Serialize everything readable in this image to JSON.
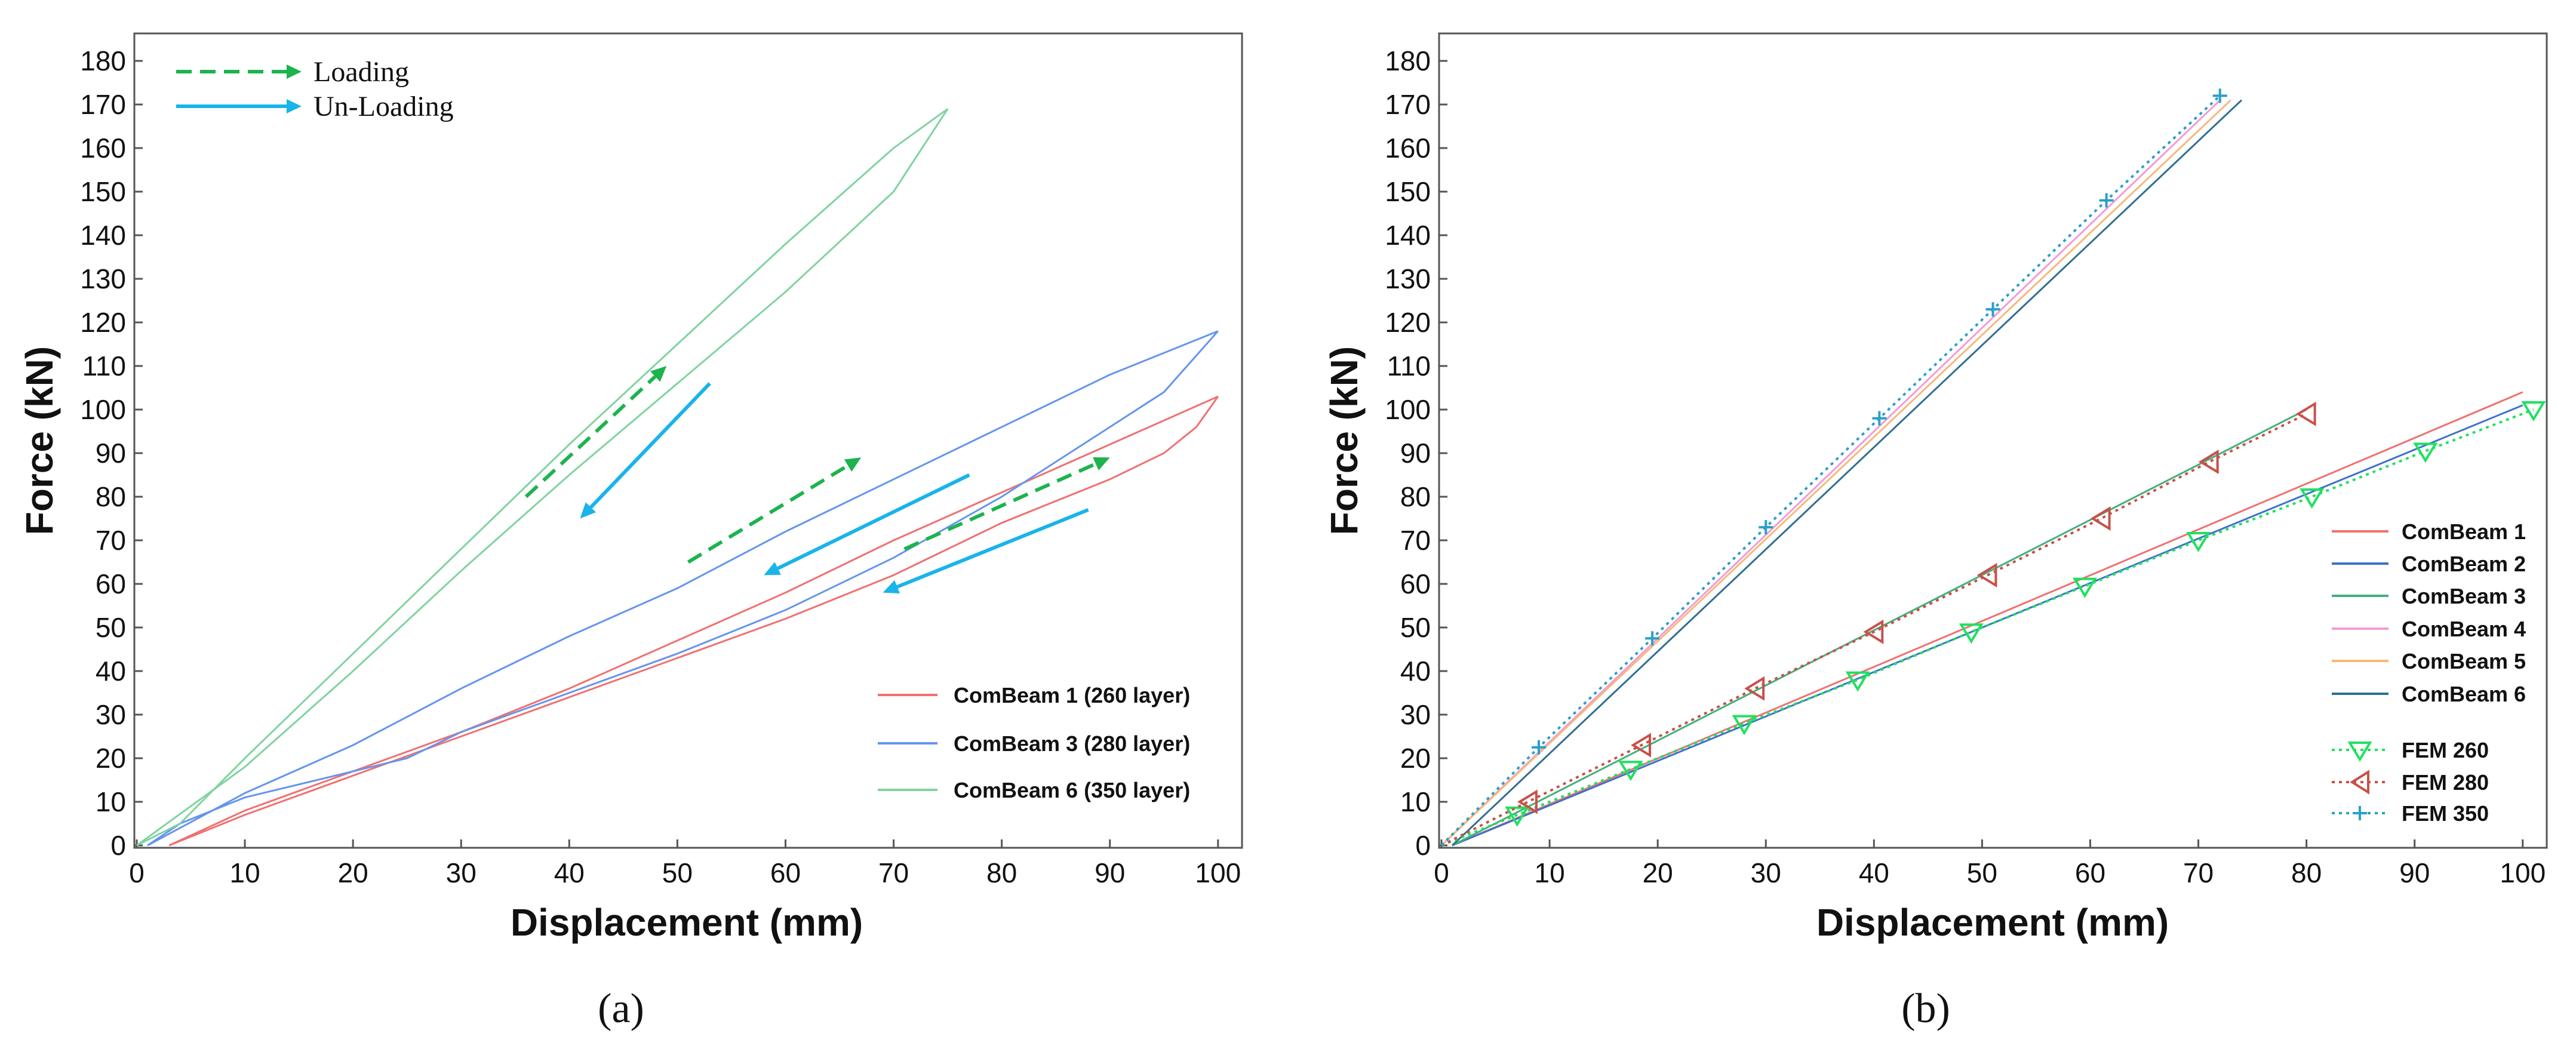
{
  "captions": {
    "a": "(a)",
    "b": "(b)"
  },
  "chart_data": [
    {
      "id": "a",
      "type": "line",
      "title": "",
      "xlabel": "Displacement (mm)",
      "ylabel": "Force (kN)",
      "xlim": [
        0,
        102
      ],
      "ylim": [
        0,
        180
      ],
      "xticks": [
        0,
        10,
        20,
        30,
        40,
        50,
        60,
        70,
        80,
        90,
        100
      ],
      "yticks": [
        0,
        10,
        20,
        30,
        40,
        50,
        60,
        70,
        80,
        90,
        100,
        110,
        120,
        130,
        140,
        150,
        160,
        170,
        180
      ],
      "annotation_legend": [
        {
          "label": "Loading",
          "style": "dashed-arrow",
          "color": "#1db34e"
        },
        {
          "label": "Un-Loading",
          "style": "solid-arrow",
          "color": "#18b4ea"
        }
      ],
      "series": [
        {
          "name": "ComBeam 1 (260 layer)",
          "color": "#f07070",
          "loading": [
            [
              3,
              0
            ],
            [
              10,
              8
            ],
            [
              20,
              17
            ],
            [
              30,
              26
            ],
            [
              40,
              36
            ],
            [
              50,
              47
            ],
            [
              60,
              58
            ],
            [
              70,
              70
            ],
            [
              80,
              81
            ],
            [
              90,
              92
            ],
            [
              100,
              103
            ]
          ],
          "unloading": [
            [
              100,
              103
            ],
            [
              98,
              96
            ],
            [
              95,
              90
            ],
            [
              90,
              84
            ],
            [
              80,
              74
            ],
            [
              70,
              62
            ],
            [
              60,
              52
            ],
            [
              50,
              43
            ],
            [
              40,
              34
            ],
            [
              30,
              25
            ],
            [
              20,
              16
            ],
            [
              10,
              7
            ],
            [
              3,
              0
            ]
          ]
        },
        {
          "name": "ComBeam 3 (280 layer)",
          "color": "#6495ed",
          "loading": [
            [
              1,
              0
            ],
            [
              10,
              12
            ],
            [
              20,
              23
            ],
            [
              30,
              36
            ],
            [
              40,
              48
            ],
            [
              50,
              59
            ],
            [
              60,
              72
            ],
            [
              70,
              84
            ],
            [
              80,
              96
            ],
            [
              90,
              108
            ],
            [
              95,
              113
            ],
            [
              100,
              118
            ]
          ],
          "unloading": [
            [
              100,
              118
            ],
            [
              95,
              104
            ],
            [
              90,
              96
            ],
            [
              80,
              80
            ],
            [
              70,
              66
            ],
            [
              60,
              54
            ],
            [
              50,
              44
            ],
            [
              40,
              35
            ],
            [
              30,
              26
            ],
            [
              25,
              20
            ],
            [
              20,
              17
            ],
            [
              10,
              11
            ],
            [
              4,
              5
            ],
            [
              1,
              0
            ]
          ]
        },
        {
          "name": "ComBeam 6 (350 layer)",
          "color": "#7fd3a0",
          "loading": [
            [
              0,
              0
            ],
            [
              10,
              18
            ],
            [
              20,
              40
            ],
            [
              30,
              63
            ],
            [
              40,
              85
            ],
            [
              50,
              106
            ],
            [
              60,
              127
            ],
            [
              70,
              150
            ],
            [
              75,
              169
            ]
          ],
          "unloading": [
            [
              75,
              169
            ],
            [
              70,
              160
            ],
            [
              60,
              138
            ],
            [
              50,
              115
            ],
            [
              40,
              92
            ],
            [
              30,
              68
            ],
            [
              20,
              44
            ],
            [
              10,
              20
            ],
            [
              4,
              5
            ],
            [
              0,
              0
            ]
          ]
        }
      ],
      "arrows": [
        {
          "type": "loading",
          "from": [
            36,
            80
          ],
          "to": [
            49,
            110
          ]
        },
        {
          "type": "unloading",
          "from": [
            53,
            106
          ],
          "to": [
            41,
            75
          ]
        },
        {
          "type": "loading",
          "from": [
            51,
            65
          ],
          "to": [
            67,
            89
          ]
        },
        {
          "type": "unloading",
          "from": [
            77,
            85
          ],
          "to": [
            58,
            62
          ]
        },
        {
          "type": "loading",
          "from": [
            71,
            68
          ],
          "to": [
            90,
            89
          ]
        },
        {
          "type": "unloading",
          "from": [
            88,
            77
          ],
          "to": [
            69,
            58
          ]
        }
      ]
    },
    {
      "id": "b",
      "type": "line",
      "title": "",
      "xlabel": "Displacement (mm)",
      "ylabel": "Force (kN)",
      "xlim": [
        0,
        102
      ],
      "ylim": [
        0,
        180
      ],
      "xticks": [
        0,
        10,
        20,
        30,
        40,
        50,
        60,
        70,
        80,
        90,
        100
      ],
      "yticks": [
        0,
        10,
        20,
        30,
        40,
        50,
        60,
        70,
        80,
        90,
        100,
        110,
        120,
        130,
        140,
        150,
        160,
        170,
        180
      ],
      "series": [
        {
          "name": "ComBeam 1",
          "color": "#f07070",
          "style": "solid",
          "points": [
            [
              1,
              0
            ],
            [
              100,
              104
            ]
          ]
        },
        {
          "name": "ComBeam 2",
          "color": "#3f6fcf",
          "style": "solid",
          "points": [
            [
              1,
              0
            ],
            [
              100,
              101
            ]
          ]
        },
        {
          "name": "ComBeam 3",
          "color": "#43b07a",
          "style": "solid",
          "points": [
            [
              1,
              0
            ],
            [
              80,
              100
            ]
          ]
        },
        {
          "name": "ComBeam 4",
          "color": "#f39bd6",
          "style": "solid",
          "points": [
            [
              0,
              0
            ],
            [
              72,
              171
            ]
          ]
        },
        {
          "name": "ComBeam 5",
          "color": "#f5b97a",
          "style": "solid",
          "points": [
            [
              0,
              0
            ],
            [
              73,
              171
            ]
          ]
        },
        {
          "name": "ComBeam 6",
          "color": "#2f6f8f",
          "style": "solid",
          "points": [
            [
              1,
              0
            ],
            [
              74,
              171
            ]
          ]
        },
        {
          "name": "FEM 260",
          "color": "#20e060",
          "style": "dotted",
          "marker": "triangle-down",
          "points": [
            [
              0,
              0
            ],
            [
              7,
              7
            ],
            [
              17.5,
              17.5
            ],
            [
              28,
              28
            ],
            [
              38.5,
              38
            ],
            [
              49,
              49
            ],
            [
              59.5,
              59.5
            ],
            [
              70,
              70
            ],
            [
              80.5,
              80
            ],
            [
              91,
              90.5
            ],
            [
              101,
              100
            ]
          ]
        },
        {
          "name": "FEM 280",
          "color": "#c8504a",
          "style": "dotted",
          "marker": "triangle-left",
          "points": [
            [
              0,
              0
            ],
            [
              8,
              10
            ],
            [
              18.5,
              23
            ],
            [
              29,
              36
            ],
            [
              40,
              49
            ],
            [
              50.5,
              62
            ],
            [
              61,
              75
            ],
            [
              71,
              88
            ],
            [
              80,
              99
            ]
          ]
        },
        {
          "name": "FEM 350",
          "color": "#2aa0c8",
          "style": "dotted",
          "marker": "plus",
          "points": [
            [
              0,
              0
            ],
            [
              9,
              22.5
            ],
            [
              19.5,
              47.5
            ],
            [
              30,
              73
            ],
            [
              40.5,
              98
            ],
            [
              51,
              123
            ],
            [
              61.5,
              148
            ],
            [
              72,
              172
            ]
          ]
        }
      ]
    }
  ]
}
